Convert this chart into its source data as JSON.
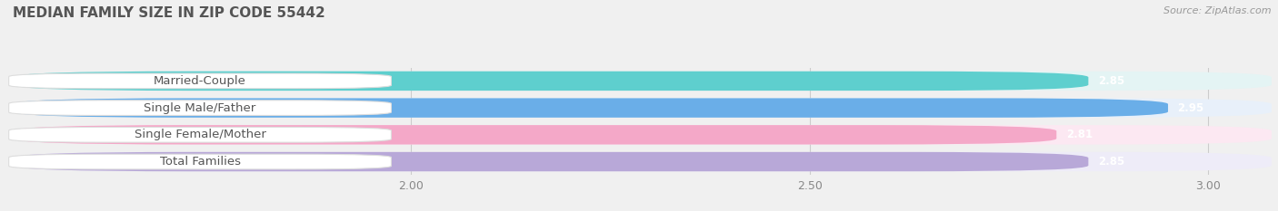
{
  "title": "MEDIAN FAMILY SIZE IN ZIP CODE 55442",
  "source": "Source: ZipAtlas.com",
  "categories": [
    "Married-Couple",
    "Single Male/Father",
    "Single Female/Mother",
    "Total Families"
  ],
  "values": [
    2.85,
    2.95,
    2.81,
    2.85
  ],
  "bar_colors": [
    "#5ecfce",
    "#6aaee8",
    "#f4a8c8",
    "#b8a8d8"
  ],
  "bar_bg_colors": [
    "#e4f4f4",
    "#e8f0fa",
    "#fce8f2",
    "#eeecf8"
  ],
  "x_min": 1.5,
  "x_max": 3.08,
  "x_ticks": [
    2.0,
    2.5,
    3.0
  ],
  "background_color": "#f0f0f0",
  "title_fontsize": 11,
  "label_fontsize": 9.5,
  "value_fontsize": 8.5,
  "tick_fontsize": 9,
  "source_fontsize": 8
}
